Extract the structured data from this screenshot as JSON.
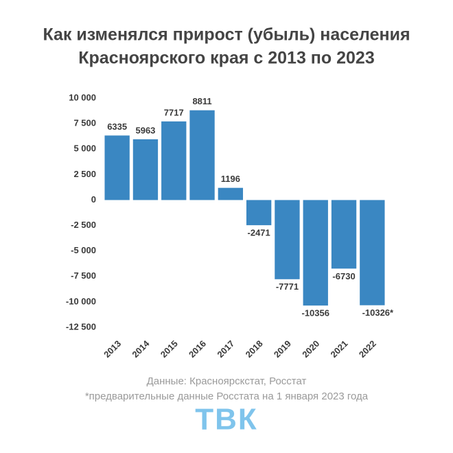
{
  "chart_data": {
    "type": "bar",
    "title": [
      "Как изменялся прирост (убыль) населения",
      "Красноярского края с 2013 по 2023"
    ],
    "categories": [
      "2013",
      "2014",
      "2015",
      "2016",
      "2017",
      "2018",
      "2019",
      "2020",
      "2021",
      "2022"
    ],
    "values": [
      6335,
      5963,
      7717,
      8811,
      1196,
      -2471,
      -7771,
      -10356,
      -6730,
      -10326
    ],
    "value_labels": [
      "6335",
      "5963",
      "7717",
      "8811",
      "1196",
      "-2471",
      "-7771",
      "-10356",
      "-6730",
      "-10326*"
    ],
    "color": "#3a87c2",
    "ylim": [
      -12500,
      10000
    ],
    "yticks": [
      {
        "value": -12500,
        "label": "-12 500"
      },
      {
        "value": -10000,
        "label": "-10 000"
      },
      {
        "value": -7500,
        "label": "-7 500"
      },
      {
        "value": -5000,
        "label": "-5 000"
      },
      {
        "value": -2500,
        "label": "-2 500"
      },
      0,
      {
        "value": 2500,
        "label": "2 500"
      },
      {
        "value": 5000,
        "label": "5 000"
      },
      {
        "value": 7500,
        "label": "7 500"
      },
      {
        "value": 10000,
        "label": "10 000"
      }
    ],
    "grid": false,
    "source": "Данные: Красноярскстат, Росстат",
    "note": "*предварительные данные Росстата на 1 января 2023 года",
    "logo": "ТВК"
  }
}
